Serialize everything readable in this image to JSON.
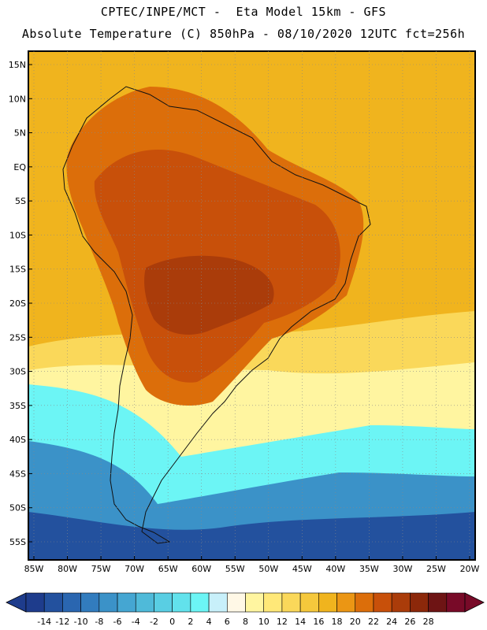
{
  "header": {
    "line1": "CPTEC/INPE/MCT -  Eta Model 15km - GFS",
    "line2": "Absolute Temperature (C) 850hPa - 08/10/2020 12UTC fct=256h"
  },
  "axes": {
    "lat_labels": [
      "15N",
      "10N",
      "5N",
      "EQ",
      "5S",
      "10S",
      "15S",
      "20S",
      "25S",
      "30S",
      "35S",
      "40S",
      "45S",
      "50S",
      "55S"
    ],
    "lon_labels": [
      "85W",
      "80W",
      "75W",
      "70W",
      "65W",
      "60W",
      "55W",
      "50W",
      "45W",
      "40W",
      "35W",
      "30W",
      "25W",
      "20W"
    ]
  },
  "colorbar": {
    "labels": [
      "-14",
      "-12",
      "-10",
      "-8",
      "-6",
      "-4",
      "-2",
      "0",
      "2",
      "4",
      "6",
      "8",
      "10",
      "12",
      "14",
      "16",
      "18",
      "20",
      "22",
      "24",
      "26",
      "28"
    ],
    "colors": [
      "#1e3c8c",
      "#23519e",
      "#2a66b0",
      "#327cbe",
      "#3b92c8",
      "#45a6d2",
      "#4fbad9",
      "#59cee3",
      "#62e2ec",
      "#6cf5f5",
      "#c8f0fa",
      "#fff8e6",
      "#fff5a0",
      "#ffe878",
      "#fad85a",
      "#f5c83c",
      "#f0b41e",
      "#eb9614",
      "#dc6e0a",
      "#c8500a",
      "#aa3c0a",
      "#8c280a",
      "#6e1414",
      "#780a28"
    ]
  },
  "regions": [
    {
      "name": "warm-ocean-north",
      "color": "#f0b41e"
    },
    {
      "name": "continent-hot",
      "color": "#dc6e0a"
    },
    {
      "name": "core-hot",
      "color": "#c8500a"
    },
    {
      "name": "hottest",
      "color": "#aa3c0a"
    },
    {
      "name": "yellow-band",
      "color": "#fad85a"
    },
    {
      "name": "pale-band",
      "color": "#fff5a0"
    },
    {
      "name": "cyan-band",
      "color": "#6cf5f5"
    },
    {
      "name": "mid-blue",
      "color": "#3b92c8"
    },
    {
      "name": "deep-blue",
      "color": "#23519e"
    }
  ]
}
